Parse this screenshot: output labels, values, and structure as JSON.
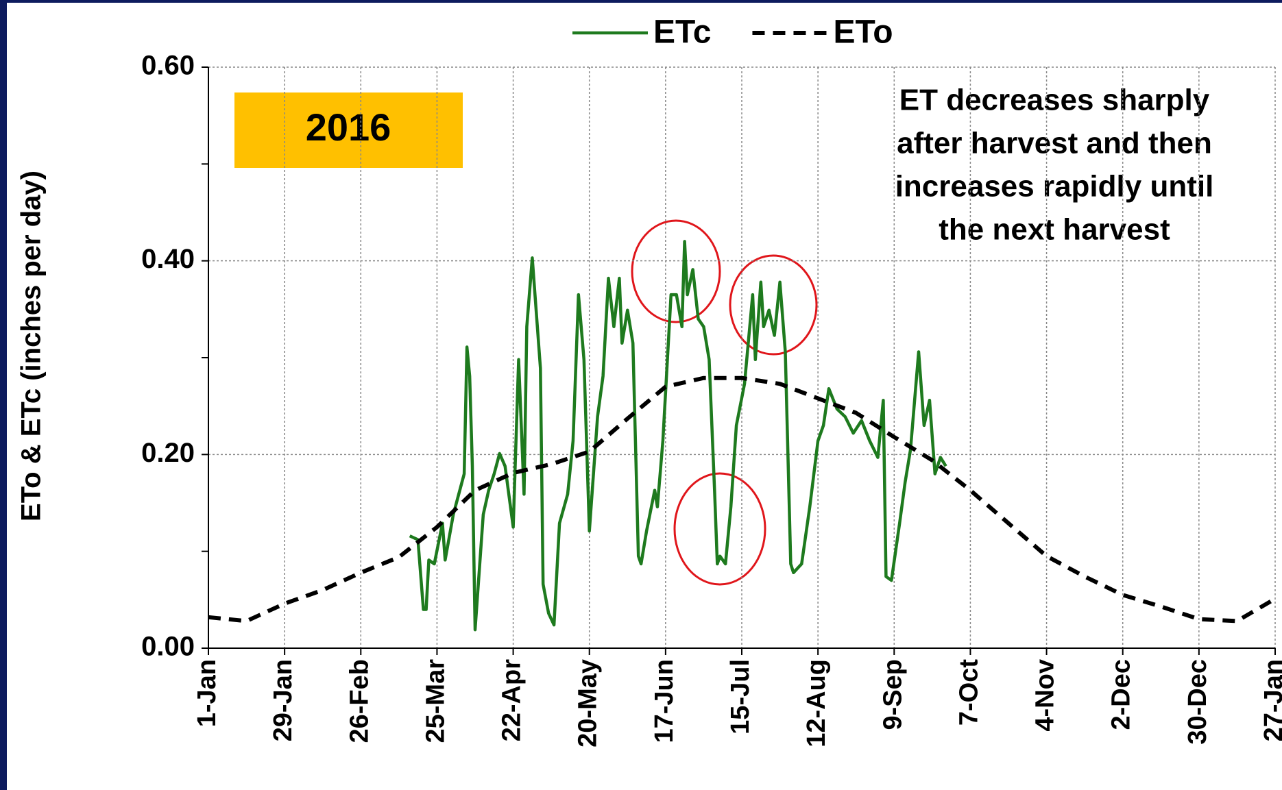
{
  "chart_data": {
    "type": "line",
    "ylabel": "ETo & ETc (inches per day)",
    "year_label": "2016",
    "annotation": [
      "ET decreases sharply",
      "after harvest and then",
      "increases rapidly until",
      "the next harvest"
    ],
    "xlim": [
      0,
      392
    ],
    "xticks": [
      {
        "value": 0,
        "label": "1-Jan"
      },
      {
        "value": 28,
        "label": "29-Jan"
      },
      {
        "value": 56,
        "label": "26-Feb"
      },
      {
        "value": 84,
        "label": "25-Mar"
      },
      {
        "value": 112,
        "label": "22-Apr"
      },
      {
        "value": 140,
        "label": "20-May"
      },
      {
        "value": 168,
        "label": "17-Jun"
      },
      {
        "value": 196,
        "label": "15-Jul"
      },
      {
        "value": 224,
        "label": "12-Aug"
      },
      {
        "value": 252,
        "label": "9-Sep"
      },
      {
        "value": 280,
        "label": "7-Oct"
      },
      {
        "value": 308,
        "label": "4-Nov"
      },
      {
        "value": 336,
        "label": "2-Dec"
      },
      {
        "value": 364,
        "label": "30-Dec"
      },
      {
        "value": 392,
        "label": "27-Jan"
      }
    ],
    "ylim": [
      0,
      0.6
    ],
    "yticks": [
      {
        "value": 0,
        "label": "0.00"
      },
      {
        "value": 0.2,
        "label": "0.20"
      },
      {
        "value": 0.4,
        "label": "0.40"
      },
      {
        "value": 0.6,
        "label": "0.60"
      }
    ],
    "yminor": [
      0.1,
      0.3,
      0.5
    ],
    "grid": true,
    "legend": "top",
    "series": [
      {
        "name": "ETc",
        "color": "#1e7a1e",
        "dash": false,
        "x": [
          74,
          77,
          79,
          80,
          81,
          83,
          86,
          87,
          90,
          94,
          95,
          96,
          97,
          98,
          101,
          103,
          105,
          107,
          109,
          112,
          114,
          116,
          117,
          119,
          122,
          123,
          125,
          127,
          129,
          132,
          134,
          136,
          138,
          140,
          143,
          145,
          147,
          149,
          151,
          152,
          154,
          156,
          158,
          159,
          161,
          164,
          165,
          167,
          170,
          172,
          174,
          175,
          176,
          178,
          180,
          182,
          184,
          186,
          187,
          188,
          190,
          192,
          194,
          197,
          200,
          201,
          203,
          204,
          206,
          208,
          210,
          212,
          214,
          215,
          218,
          221,
          224,
          226,
          228,
          231,
          234,
          237,
          240,
          243,
          246,
          248,
          249,
          251,
          254,
          256,
          258,
          261,
          263,
          265,
          267,
          269,
          271
        ],
        "values": [
          0.116,
          0.112,
          0.04,
          0.04,
          0.091,
          0.087,
          0.129,
          0.091,
          0.138,
          0.18,
          0.311,
          0.281,
          0.188,
          0.019,
          0.138,
          0.163,
          0.18,
          0.201,
          0.188,
          0.125,
          0.298,
          0.159,
          0.332,
          0.403,
          0.289,
          0.066,
          0.036,
          0.024,
          0.129,
          0.159,
          0.214,
          0.365,
          0.298,
          0.121,
          0.239,
          0.281,
          0.382,
          0.332,
          0.382,
          0.315,
          0.349,
          0.315,
          0.095,
          0.087,
          0.121,
          0.163,
          0.146,
          0.214,
          0.365,
          0.365,
          0.332,
          0.42,
          0.365,
          0.391,
          0.34,
          0.332,
          0.298,
          0.163,
          0.087,
          0.095,
          0.087,
          0.146,
          0.23,
          0.273,
          0.365,
          0.298,
          0.378,
          0.332,
          0.349,
          0.323,
          0.378,
          0.306,
          0.087,
          0.078,
          0.087,
          0.146,
          0.214,
          0.23,
          0.268,
          0.247,
          0.239,
          0.222,
          0.235,
          0.214,
          0.197,
          0.256,
          0.074,
          0.07,
          0.129,
          0.171,
          0.205,
          0.306,
          0.23,
          0.256,
          0.18,
          0.197,
          0.188
        ]
      },
      {
        "name": "ETo",
        "color": "#000000",
        "dash": true,
        "x": [
          0,
          14,
          28,
          42,
          56,
          70,
          84,
          98,
          112,
          126,
          140,
          154,
          168,
          182,
          196,
          210,
          224,
          238,
          252,
          266,
          280,
          294,
          308,
          322,
          336,
          350,
          364,
          378,
          392
        ],
        "values": [
          0.032,
          0.028,
          0.046,
          0.06,
          0.078,
          0.094,
          0.125,
          0.163,
          0.181,
          0.19,
          0.203,
          0.237,
          0.27,
          0.279,
          0.279,
          0.273,
          0.258,
          0.243,
          0.218,
          0.194,
          0.163,
          0.129,
          0.095,
          0.074,
          0.055,
          0.043,
          0.03,
          0.028,
          0.051
        ]
      }
    ]
  }
}
